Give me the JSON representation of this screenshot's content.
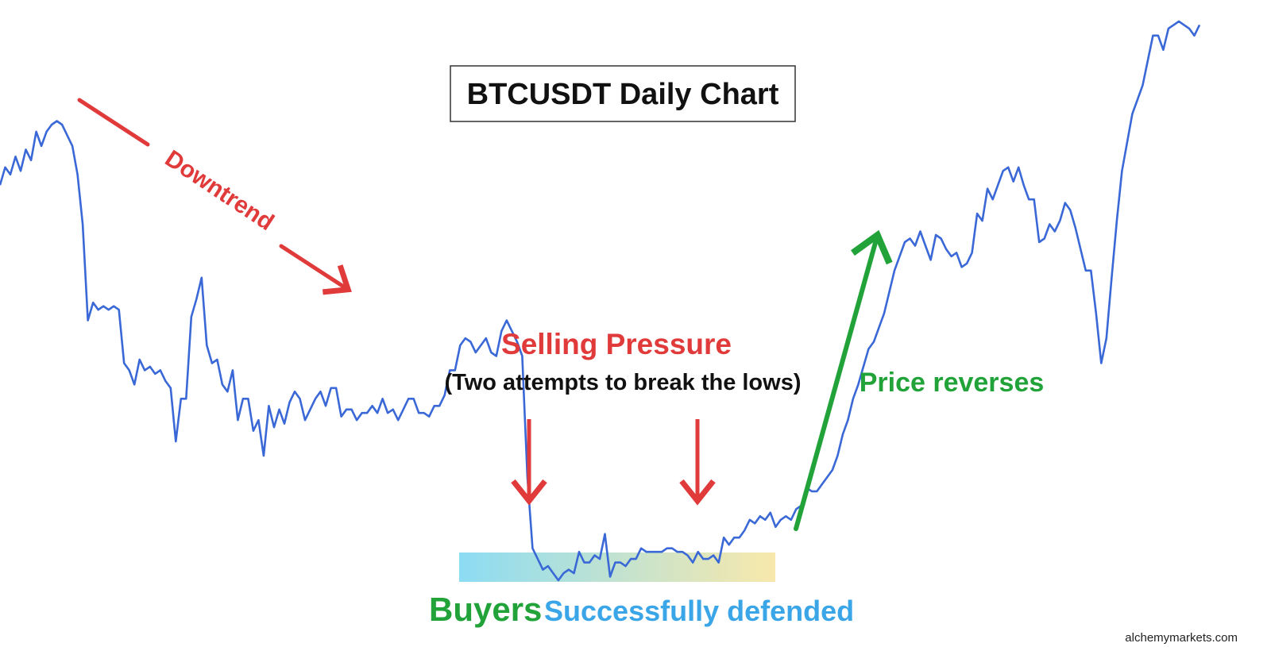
{
  "chart_data": {
    "type": "line",
    "title": "BTCUSDT Daily Chart",
    "xlabel": "",
    "ylabel": "",
    "grid": false,
    "legend": "none",
    "colors": {
      "line": "#3a68d6",
      "red": "#e03a3a",
      "green": "#21a33a",
      "blue_text": "#3aa6e8",
      "title_border": "#333333",
      "zone_start": "#7fd8f2",
      "zone_end": "#f7e6a2"
    },
    "series": [
      {
        "values": [
          48,
          53,
          51,
          56,
          52,
          58,
          55,
          63,
          59,
          63,
          65,
          66,
          65,
          62,
          59,
          51,
          37,
          10,
          15,
          13,
          14,
          13,
          14,
          13,
          -2,
          -4,
          -8,
          -1,
          -4,
          -3,
          -5,
          -4,
          -7,
          -9,
          -24,
          -12,
          -12,
          11,
          16,
          22,
          3,
          -2,
          -1,
          -8,
          -10,
          -4,
          -18,
          -12,
          -12,
          -21,
          -18,
          -28,
          -14,
          -20,
          -15,
          -19,
          -13,
          -10,
          -12,
          -18,
          -15,
          -12,
          -10,
          -14,
          -9,
          -9,
          -17,
          -15,
          -15,
          -18,
          -16,
          -16,
          -14,
          -16,
          -12,
          -16,
          -15,
          -18,
          -15,
          -12,
          -12,
          -16,
          -16,
          -17,
          -14,
          -14,
          -11,
          -4,
          -4,
          3,
          5,
          4,
          1,
          3,
          5,
          1,
          0,
          7,
          10,
          7,
          4,
          0,
          -34,
          -54,
          -57,
          -60,
          -59,
          -61,
          -63,
          -61,
          -60,
          -61,
          -55,
          -58,
          -58,
          -56,
          -57,
          -50,
          -62,
          -58,
          -58,
          -59,
          -57,
          -57,
          -54,
          -55,
          -55,
          -55,
          -55,
          -54,
          -54,
          -55,
          -55,
          -56,
          -58,
          -55,
          -57,
          -57,
          -56,
          -58,
          -51,
          -53,
          -51,
          -51,
          -49,
          -46,
          -47,
          -45,
          -46,
          -44,
          -48,
          -46,
          -45,
          -46,
          -43,
          -42,
          -37,
          -38,
          -38,
          -36,
          -34,
          -32,
          -28,
          -22,
          -18,
          -12,
          -8,
          -3,
          2,
          4,
          8,
          12,
          18,
          24,
          28,
          32,
          33,
          31,
          35,
          31,
          27,
          34,
          33,
          30,
          28,
          29,
          25,
          26,
          29,
          40,
          38,
          47,
          44,
          48,
          52,
          53,
          49,
          53,
          48,
          44,
          44,
          32,
          33,
          37,
          35,
          38,
          43,
          41,
          36,
          30,
          24,
          24,
          12,
          -2,
          5,
          22,
          38,
          52,
          60,
          68,
          72,
          76,
          83,
          90,
          90,
          86,
          92,
          93,
          94,
          93,
          92,
          90,
          93
        ]
      }
    ],
    "annotations": {
      "downtrend": "Downtrend",
      "selling_pressure": "Selling Pressure",
      "selling_sub": "(Two attempts to break the lows)",
      "price_reverses": "Price reverses",
      "buyers": "Buyers",
      "successfully_defended": "Successfully defended",
      "watermark": "alchemymarkets.com"
    }
  }
}
